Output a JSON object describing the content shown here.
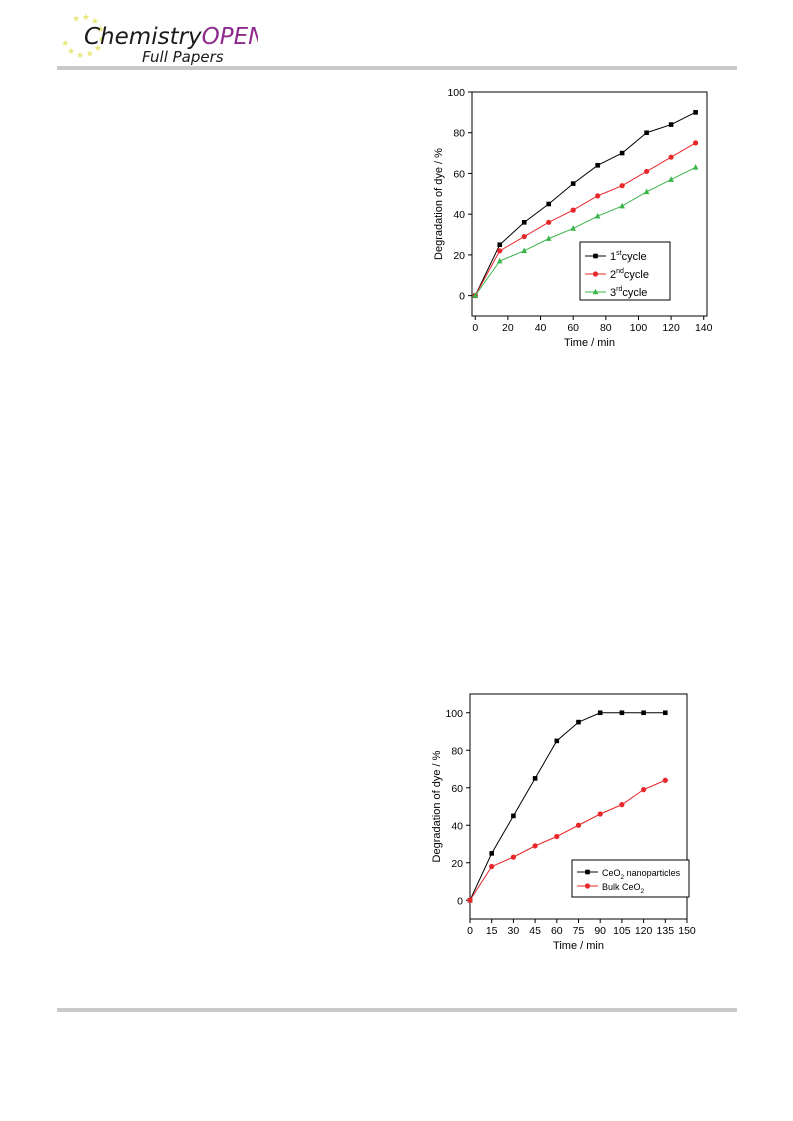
{
  "header": {
    "journal_part1": "Chemistry",
    "journal_part2": "OPEN",
    "section": "Full Papers",
    "accent_color": "#8e2a8e",
    "star_color": "#e8e87a"
  },
  "chart_data": [
    {
      "type": "line",
      "xlabel": "Time / min",
      "ylabel": "Degradation of dye / %",
      "xlim": [
        -2,
        142
      ],
      "ylim": [
        -10,
        100
      ],
      "xticks": [
        0,
        20,
        40,
        60,
        80,
        100,
        120,
        140
      ],
      "yticks": [
        0,
        20,
        40,
        60,
        80,
        100
      ],
      "legend_position": "lower-right",
      "grid": false,
      "series": [
        {
          "name": "1st cycle",
          "base": "1",
          "sup": "st",
          "rest": "cycle",
          "color": "#000000",
          "marker": "square",
          "x": [
            0,
            15,
            30,
            45,
            60,
            75,
            90,
            105,
            120,
            135
          ],
          "y": [
            0,
            25,
            36,
            45,
            55,
            64,
            70,
            80,
            84,
            90
          ]
        },
        {
          "name": "2nd cycle",
          "base": "2",
          "sup": "nd",
          "rest": "cycle",
          "color": "#e8272a",
          "marker": "circle",
          "x": [
            0,
            15,
            30,
            45,
            60,
            75,
            90,
            105,
            120,
            135
          ],
          "y": [
            0,
            22,
            29,
            36,
            42,
            49,
            54,
            61,
            68,
            75
          ]
        },
        {
          "name": "3rd cycle",
          "base": "3",
          "sup": "rd",
          "rest": "cycle",
          "color": "#39b54a",
          "marker": "triangle",
          "x": [
            0,
            15,
            30,
            45,
            60,
            75,
            90,
            105,
            120,
            135
          ],
          "y": [
            0,
            17,
            22,
            28,
            33,
            39,
            44,
            51,
            57,
            63
          ]
        }
      ]
    },
    {
      "type": "line",
      "xlabel": "Time / min",
      "ylabel": "Degradation of dye / %",
      "xlim": [
        0,
        150
      ],
      "ylim": [
        -10,
        110
      ],
      "xticks": [
        0,
        15,
        30,
        45,
        60,
        75,
        90,
        105,
        120,
        135,
        150
      ],
      "yticks": [
        0,
        20,
        40,
        60,
        80,
        100
      ],
      "legend_position": "lower-right",
      "grid": false,
      "series": [
        {
          "name": "CeO2 nanoparticles",
          "base": "CeO",
          "sub": "2",
          "rest": " nanoparticles",
          "color": "#000000",
          "marker": "square",
          "x": [
            0,
            15,
            30,
            45,
            60,
            75,
            90,
            105,
            120,
            135
          ],
          "y": [
            0,
            25,
            45,
            65,
            85,
            95,
            100,
            100,
            100,
            100
          ]
        },
        {
          "name": "Bulk CeO2",
          "base": "Bulk CeO",
          "sub": "2",
          "rest": "",
          "color": "#e8272a",
          "marker": "circle",
          "x": [
            0,
            15,
            30,
            45,
            60,
            75,
            90,
            105,
            120,
            135
          ],
          "y": [
            0,
            18,
            23,
            29,
            34,
            40,
            46,
            51,
            59,
            64
          ]
        }
      ]
    }
  ]
}
